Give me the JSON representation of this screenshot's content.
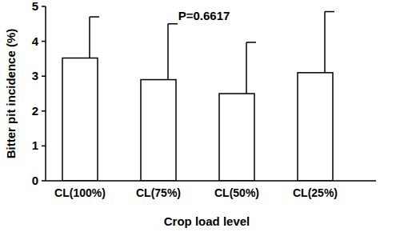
{
  "chart_data": {
    "type": "bar",
    "categories": [
      "CL(100%)",
      "CL(75%)",
      "CL(50%)",
      "CL(25%)"
    ],
    "values": [
      3.52,
      2.9,
      2.5,
      3.1
    ],
    "errors": [
      1.18,
      1.6,
      1.47,
      1.75
    ],
    "color": "#ffffff",
    "ylim": [
      0,
      5
    ],
    "yticks": [
      0,
      1,
      2,
      3,
      4,
      5
    ],
    "grid": false,
    "x_label": "Crop load level",
    "y_label": "Bitter pit incidence (%)",
    "annotation": "P=0.6617"
  }
}
